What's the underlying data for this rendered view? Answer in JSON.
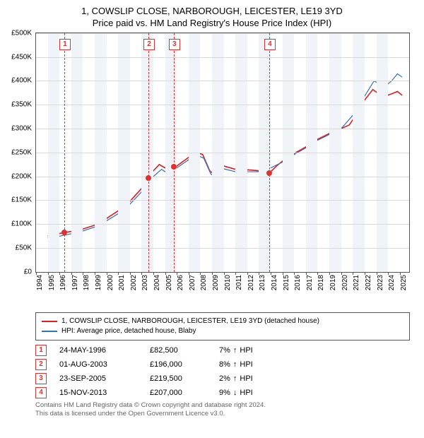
{
  "title": {
    "line1": "1, COWSLIP CLOSE, NARBOROUGH, LEICESTER, LE19 3YD",
    "line2": "Price paid vs. HM Land Registry's House Price Index (HPI)"
  },
  "chart": {
    "type": "line",
    "ylim": [
      0,
      500000
    ],
    "ytick_step": 50000,
    "ytick_labels": [
      "£0",
      "£50K",
      "£100K",
      "£150K",
      "£200K",
      "£250K",
      "£300K",
      "£350K",
      "£400K",
      "£450K",
      "£500K"
    ],
    "xlim": [
      1994,
      2025.8
    ],
    "xticks": [
      1994,
      1995,
      1996,
      1997,
      1998,
      1999,
      2000,
      2001,
      2002,
      2003,
      2004,
      2005,
      2006,
      2007,
      2008,
      2009,
      2010,
      2011,
      2012,
      2013,
      2014,
      2015,
      2016,
      2017,
      2018,
      2019,
      2020,
      2021,
      2022,
      2023,
      2024,
      2025
    ],
    "background_color": "#ffffff",
    "band_color": "#f0f4f8",
    "grid_color": "#d9d9d9",
    "border_color": "#555555",
    "series": [
      {
        "name": "1, COWSLIP CLOSE, NARBOROUGH, LEICESTER, LE19 3YD (detached house)",
        "color": "#e41a1c",
        "width": 1.6,
        "data": [
          [
            1995.0,
            76000
          ],
          [
            1996.4,
            82500
          ],
          [
            1997.0,
            85000
          ],
          [
            1998.0,
            90000
          ],
          [
            1999.0,
            98000
          ],
          [
            2000.0,
            112000
          ],
          [
            2001.0,
            128000
          ],
          [
            2002.0,
            148000
          ],
          [
            2003.0,
            175000
          ],
          [
            2003.58,
            196000
          ],
          [
            2004.0,
            212000
          ],
          [
            2004.5,
            225000
          ],
          [
            2005.0,
            218000
          ],
          [
            2005.73,
            219500
          ],
          [
            2006.0,
            222000
          ],
          [
            2007.0,
            240000
          ],
          [
            2007.7,
            250000
          ],
          [
            2008.2,
            246000
          ],
          [
            2008.8,
            212000
          ],
          [
            2009.3,
            202000
          ],
          [
            2010.0,
            222000
          ],
          [
            2011.0,
            215000
          ],
          [
            2012.0,
            214000
          ],
          [
            2013.0,
            212000
          ],
          [
            2013.87,
            207000
          ],
          [
            2014.5,
            222000
          ],
          [
            2015.0,
            232000
          ],
          [
            2016.0,
            248000
          ],
          [
            2017.0,
            262000
          ],
          [
            2018.0,
            278000
          ],
          [
            2019.0,
            290000
          ],
          [
            2020.0,
            300000
          ],
          [
            2020.7,
            308000
          ],
          [
            2021.3,
            330000
          ],
          [
            2022.0,
            360000
          ],
          [
            2022.7,
            382000
          ],
          [
            2023.1,
            375000
          ],
          [
            2023.7,
            368000
          ],
          [
            2024.2,
            372000
          ],
          [
            2024.8,
            378000
          ],
          [
            2025.2,
            370000
          ]
        ]
      },
      {
        "name": "HPI: Average price, detached house, Blaby",
        "color": "#3070c0",
        "width": 1.2,
        "data": [
          [
            1995.0,
            72000
          ],
          [
            1996.0,
            75000
          ],
          [
            1997.0,
            80000
          ],
          [
            1998.0,
            86000
          ],
          [
            1999.0,
            94000
          ],
          [
            2000.0,
            107000
          ],
          [
            2001.0,
            122000
          ],
          [
            2002.0,
            142000
          ],
          [
            2003.0,
            168000
          ],
          [
            2004.0,
            200000
          ],
          [
            2004.7,
            215000
          ],
          [
            2005.0,
            210000
          ],
          [
            2006.0,
            218000
          ],
          [
            2007.0,
            235000
          ],
          [
            2007.7,
            245000
          ],
          [
            2008.3,
            238000
          ],
          [
            2008.9,
            205000
          ],
          [
            2009.4,
            198000
          ],
          [
            2010.0,
            216000
          ],
          [
            2011.0,
            210000
          ],
          [
            2012.0,
            210000
          ],
          [
            2013.0,
            210000
          ],
          [
            2014.0,
            218000
          ],
          [
            2015.0,
            230000
          ],
          [
            2016.0,
            246000
          ],
          [
            2017.0,
            260000
          ],
          [
            2018.0,
            276000
          ],
          [
            2019.0,
            288000
          ],
          [
            2020.0,
            300000
          ],
          [
            2021.0,
            328000
          ],
          [
            2022.0,
            368000
          ],
          [
            2022.8,
            400000
          ],
          [
            2023.2,
            395000
          ],
          [
            2023.8,
            390000
          ],
          [
            2024.3,
            400000
          ],
          [
            2024.8,
            415000
          ],
          [
            2025.2,
            408000
          ]
        ]
      }
    ],
    "markers": [
      {
        "n": "1",
        "x": 1996.4,
        "price": 82500
      },
      {
        "n": "2",
        "x": 2003.58,
        "price": 196000
      },
      {
        "n": "3",
        "x": 2005.73,
        "price": 219500
      },
      {
        "n": "4",
        "x": 2013.87,
        "price": 207000
      }
    ],
    "label_fontsize": 10
  },
  "legend": {
    "items": [
      {
        "color": "#e41a1c",
        "label": "1, COWSLIP CLOSE, NARBOROUGH, LEICESTER, LE19 3YD (detached house)"
      },
      {
        "color": "#3070c0",
        "label": "HPI: Average price, detached house, Blaby"
      }
    ]
  },
  "sales": [
    {
      "n": "1",
      "date": "24-MAY-1996",
      "price": "£82,500",
      "delta": "7%",
      "arrow": "↑",
      "vs": "HPI"
    },
    {
      "n": "2",
      "date": "01-AUG-2003",
      "price": "£196,000",
      "delta": "8%",
      "arrow": "↑",
      "vs": "HPI"
    },
    {
      "n": "3",
      "date": "23-SEP-2005",
      "price": "£219,500",
      "delta": "2%",
      "arrow": "↑",
      "vs": "HPI"
    },
    {
      "n": "4",
      "date": "15-NOV-2013",
      "price": "£207,000",
      "delta": "9%",
      "arrow": "↓",
      "vs": "HPI"
    }
  ],
  "footer": {
    "line1": "Contains HM Land Registry data © Crown copyright and database right 2024.",
    "line2": "This data is licensed under the Open Government Licence v3.0."
  }
}
